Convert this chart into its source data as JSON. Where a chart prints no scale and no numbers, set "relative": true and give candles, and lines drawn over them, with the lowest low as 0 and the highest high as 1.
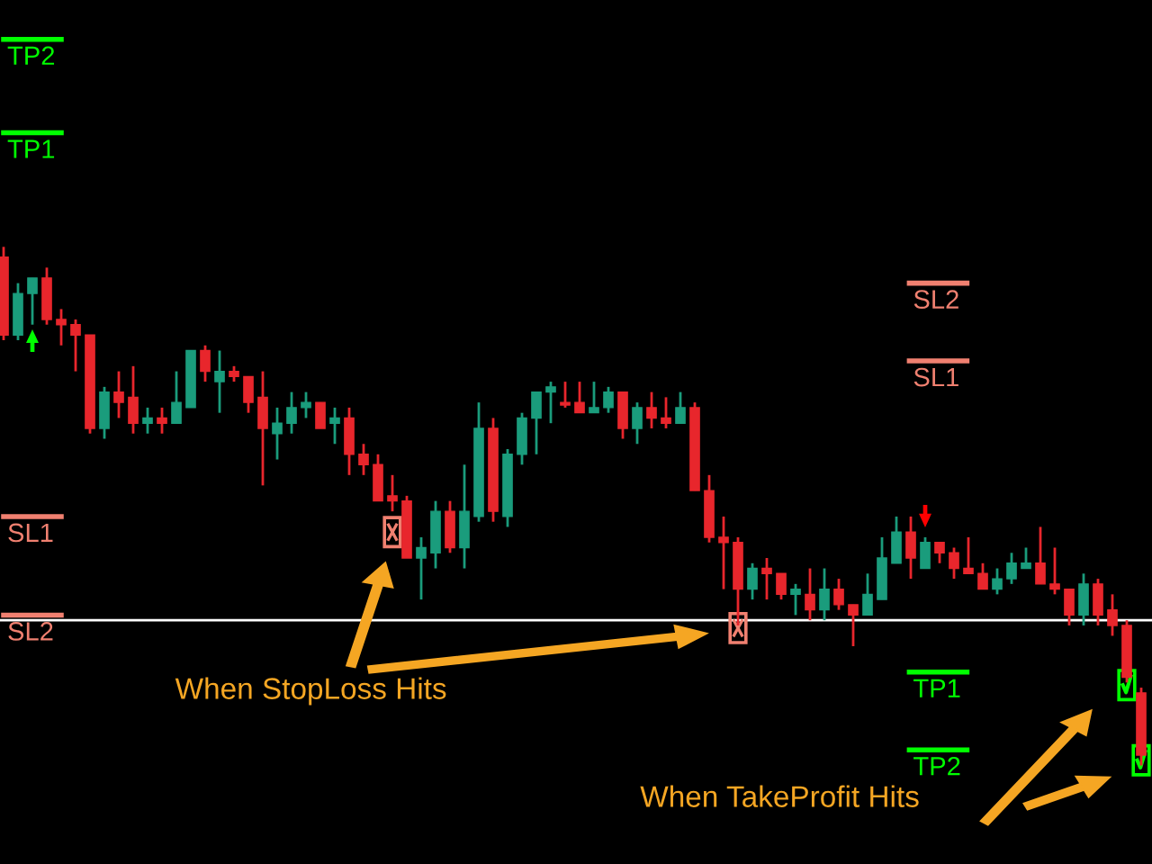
{
  "chart_data": {
    "type": "candlestick",
    "relative": true,
    "categories": [
      null,
      null,
      null,
      null,
      null,
      null,
      null,
      null,
      null,
      null,
      null,
      null,
      null,
      null,
      null,
      null,
      null,
      null,
      null,
      null,
      null,
      null,
      null,
      null,
      null,
      null,
      null,
      null,
      null,
      null,
      null,
      null,
      null,
      null,
      null,
      null,
      null,
      null,
      null,
      null,
      null,
      null,
      null,
      null,
      null,
      null,
      null,
      null,
      null,
      null,
      null,
      null,
      null,
      null,
      null,
      null,
      null,
      null,
      null,
      null,
      null,
      null,
      null,
      null,
      null,
      null,
      null,
      null,
      null,
      null,
      null,
      null,
      null,
      null,
      null,
      null,
      null,
      null,
      null,
      null
    ],
    "ohlc": [
      [
        0.98,
        1.0,
        0.82,
        0.83
      ],
      [
        0.83,
        0.93,
        0.82,
        0.91
      ],
      [
        0.91,
        0.94,
        0.85,
        0.94
      ],
      [
        0.94,
        0.96,
        0.85,
        0.86
      ],
      [
        0.86,
        0.88,
        0.81,
        0.85
      ],
      [
        0.85,
        0.86,
        0.76,
        0.83
      ],
      [
        0.83,
        0.83,
        0.64,
        0.65
      ],
      [
        0.65,
        0.73,
        0.63,
        0.72
      ],
      [
        0.72,
        0.76,
        0.67,
        0.7
      ],
      [
        0.71,
        0.77,
        0.64,
        0.66
      ],
      [
        0.66,
        0.69,
        0.64,
        0.67
      ],
      [
        0.67,
        0.69,
        0.64,
        0.66
      ],
      [
        0.66,
        0.76,
        0.66,
        0.7
      ],
      [
        0.69,
        0.8,
        0.69,
        0.8
      ],
      [
        0.8,
        0.81,
        0.74,
        0.76
      ],
      [
        0.74,
        0.8,
        0.68,
        0.76
      ],
      [
        0.76,
        0.77,
        0.74,
        0.75
      ],
      [
        0.75,
        0.75,
        0.68,
        0.7
      ],
      [
        0.71,
        0.76,
        0.54,
        0.65
      ],
      [
        0.64,
        0.69,
        0.59,
        0.66
      ],
      [
        0.66,
        0.72,
        0.64,
        0.69
      ],
      [
        0.69,
        0.72,
        0.67,
        0.7
      ],
      [
        0.7,
        0.7,
        0.65,
        0.65
      ],
      [
        0.66,
        0.69,
        0.62,
        0.67
      ],
      [
        0.67,
        0.69,
        0.56,
        0.6
      ],
      [
        0.6,
        0.62,
        0.56,
        0.58
      ],
      [
        0.58,
        0.6,
        0.51,
        0.51
      ],
      [
        0.52,
        0.56,
        0.49,
        0.51
      ],
      [
        0.51,
        0.52,
        0.4,
        0.4
      ],
      [
        0.4,
        0.44,
        0.32,
        0.42
      ],
      [
        0.41,
        0.51,
        0.38,
        0.49
      ],
      [
        0.49,
        0.51,
        0.41,
        0.42
      ],
      [
        0.42,
        0.58,
        0.38,
        0.49
      ],
      [
        0.48,
        0.7,
        0.47,
        0.65
      ],
      [
        0.65,
        0.67,
        0.47,
        0.49
      ],
      [
        0.48,
        0.61,
        0.46,
        0.6
      ],
      [
        0.6,
        0.68,
        0.58,
        0.67
      ],
      [
        0.67,
        0.72,
        0.6,
        0.72
      ],
      [
        0.72,
        0.74,
        0.66,
        0.73
      ],
      [
        0.7,
        0.74,
        0.69,
        0.695
      ],
      [
        0.7,
        0.74,
        0.68,
        0.68
      ],
      [
        0.68,
        0.74,
        0.68,
        0.69
      ],
      [
        0.69,
        0.73,
        0.68,
        0.72
      ],
      [
        0.72,
        0.72,
        0.63,
        0.65
      ],
      [
        0.65,
        0.7,
        0.62,
        0.69
      ],
      [
        0.69,
        0.72,
        0.65,
        0.67
      ],
      [
        0.67,
        0.71,
        0.65,
        0.66
      ],
      [
        0.66,
        0.72,
        0.66,
        0.69
      ],
      [
        0.69,
        0.7,
        0.53,
        0.53
      ],
      [
        0.53,
        0.56,
        0.43,
        0.44
      ],
      [
        0.44,
        0.48,
        0.34,
        0.43
      ],
      [
        0.43,
        0.44,
        0.27,
        0.34
      ],
      [
        0.34,
        0.39,
        0.32,
        0.38
      ],
      [
        0.38,
        0.4,
        0.32,
        0.37
      ],
      [
        0.37,
        0.37,
        0.32,
        0.33
      ],
      [
        0.33,
        0.35,
        0.29,
        0.34
      ],
      [
        0.33,
        0.38,
        0.28,
        0.3
      ],
      [
        0.3,
        0.38,
        0.28,
        0.34
      ],
      [
        0.34,
        0.36,
        0.3,
        0.31
      ],
      [
        0.31,
        0.31,
        0.23,
        0.29
      ],
      [
        0.29,
        0.37,
        0.29,
        0.33
      ],
      [
        0.32,
        0.44,
        0.32,
        0.4
      ],
      [
        0.39,
        0.48,
        0.39,
        0.45
      ],
      [
        0.45,
        0.48,
        0.36,
        0.4
      ],
      [
        0.38,
        0.44,
        0.38,
        0.43
      ],
      [
        0.43,
        0.43,
        0.39,
        0.41
      ],
      [
        0.41,
        0.42,
        0.36,
        0.38
      ],
      [
        0.38,
        0.44,
        0.37,
        0.37
      ],
      [
        0.37,
        0.39,
        0.34,
        0.34
      ],
      [
        0.34,
        0.38,
        0.33,
        0.36
      ],
      [
        0.36,
        0.41,
        0.35,
        0.39
      ],
      [
        0.38,
        0.42,
        0.38,
        0.39
      ],
      [
        0.39,
        0.46,
        0.35,
        0.35
      ],
      [
        0.35,
        0.42,
        0.33,
        0.34
      ],
      [
        0.34,
        0.34,
        0.27,
        0.29
      ],
      [
        0.29,
        0.37,
        0.27,
        0.35
      ],
      [
        0.35,
        0.36,
        0.27,
        0.29
      ],
      [
        0.3,
        0.33,
        0.25,
        0.27
      ],
      [
        0.27,
        0.28,
        0.16,
        0.17
      ],
      [
        0.14,
        0.15,
        0.0,
        0.02
      ]
    ],
    "colors": [
      "#e8262c",
      "#1a9c7c",
      "#1a9c7c",
      "#e8262c",
      "#e8262c",
      "#e8262c",
      "#e8262c",
      "#1a9c7c",
      "#e8262c",
      "#e8262c",
      "#1a9c7c",
      "#e8262c",
      "#1a9c7c",
      "#1a9c7c",
      "#e8262c",
      "#1a9c7c",
      "#e8262c",
      "#e8262c",
      "#e8262c",
      "#1a9c7c",
      "#1a9c7c",
      "#1a9c7c",
      "#e8262c",
      "#1a9c7c",
      "#e8262c",
      "#e8262c",
      "#e8262c",
      "#e8262c",
      "#e8262c",
      "#1a9c7c",
      "#1a9c7c",
      "#e8262c",
      "#1a9c7c",
      "#1a9c7c",
      "#e8262c",
      "#1a9c7c",
      "#1a9c7c",
      "#1a9c7c",
      "#1a9c7c",
      "#e8262c",
      "#e8262c",
      "#1a9c7c",
      "#1a9c7c",
      "#e8262c",
      "#1a9c7c",
      "#e8262c",
      "#e8262c",
      "#1a9c7c",
      "#e8262c",
      "#e8262c",
      "#e8262c",
      "#e8262c",
      "#1a9c7c",
      "#e8262c",
      "#e8262c",
      "#1a9c7c",
      "#e8262c",
      "#1a9c7c",
      "#e8262c",
      "#e8262c",
      "#1a9c7c",
      "#1a9c7c",
      "#1a9c7c",
      "#e8262c",
      "#1a9c7c",
      "#e8262c",
      "#e8262c",
      "#e8262c",
      "#e8262c",
      "#1a9c7c",
      "#1a9c7c",
      "#1a9c7c",
      "#e8262c",
      "#e8262c",
      "#e8262c",
      "#1a9c7c",
      "#e8262c",
      "#e8262c",
      "#e8262c",
      "#e8262c"
    ],
    "ref_lines": [
      {
        "axis": "y",
        "value": 1.4,
        "label": "TP2",
        "color": "#00ff00"
      },
      {
        "axis": "y",
        "value": 1.22,
        "label": "TP1",
        "color": "#00ff00"
      },
      {
        "axis": "y",
        "value": 0.48,
        "label": "SL1",
        "color": "#f08070"
      },
      {
        "axis": "y",
        "value": 0.29,
        "label": "SL2",
        "color": "#f08070"
      },
      {
        "axis": "y",
        "value": 0.93,
        "label": "SL2",
        "color": "#f08070"
      },
      {
        "axis": "y",
        "value": 0.78,
        "label": "SL1",
        "color": "#f08070"
      },
      {
        "axis": "y",
        "value": 0.18,
        "label": "TP1",
        "color": "#00ff00"
      },
      {
        "axis": "y",
        "value": 0.03,
        "label": "TP2",
        "color": "#00ff00"
      },
      {
        "axis": "y",
        "value": 0.28,
        "color": "#ffffff"
      }
    ],
    "annotations": [
      "When StopLoss Hits",
      "When TakeProfit Hits"
    ],
    "grid": false,
    "legend": false
  }
}
